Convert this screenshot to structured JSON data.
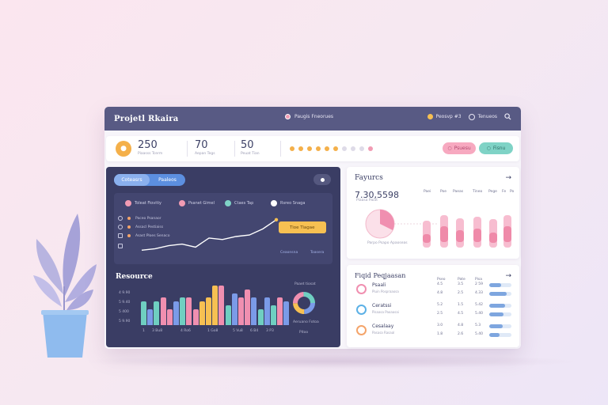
{
  "window": {
    "title": "Projetl Rkaira"
  },
  "titlebar": {
    "center_label": "Paugis Fneorues",
    "right_label": "Peosvp #3",
    "settings_label": "Tenueos"
  },
  "stats": [
    {
      "value": "250",
      "label": "Piaasss Tcerm"
    },
    {
      "value": "70",
      "label": "Aepan Tegs"
    },
    {
      "value": "50",
      "label": "Peuat Tian"
    }
  ],
  "progress_dots": {
    "filled": 6,
    "total": 10,
    "colors": {
      "filled": "#f4b04a",
      "empty": "#dedbe8",
      "active": "#f19bb3"
    }
  },
  "actions": {
    "pink_label": "Psuesu",
    "teal_label": "Fisnu"
  },
  "dark_panel": {
    "toggle": [
      "Coteasrs",
      "Paaleos"
    ],
    "legend": [
      {
        "label": "Toleat Fiovitiy",
        "color": "#f19bb3"
      },
      {
        "label": "Psanet Gimel",
        "color": "#f19bb3"
      },
      {
        "label": "Ctaes Tap",
        "color": "#7fd3c6"
      },
      {
        "label": "Rsreo Snaga",
        "color": "#ffffff"
      }
    ],
    "side_list": [
      "Paceo Psanaor",
      "Assacl Pestiaiss",
      "Asast Ploes Senaco",
      ""
    ],
    "callout_label": "Tioe Tiagae",
    "footer": [
      "Ceaonsna",
      "Toasera"
    ],
    "line_series": {
      "name": "",
      "x": [
        0,
        1,
        2,
        3,
        4,
        5,
        6,
        7,
        8,
        9,
        10
      ],
      "y": [
        2,
        2.5,
        3.5,
        4,
        3,
        6,
        5.5,
        6.5,
        7,
        9,
        12
      ]
    },
    "resource": {
      "title": "Resource",
      "y_ticks": [
        "4 9.90",
        "5 9.40",
        "5 400",
        "5 9.90"
      ],
      "x_ticks": [
        "1",
        "3 Bu8",
        "4 Ro6",
        "1 Go8",
        "5 Vu8",
        "6 B4",
        "3 P3"
      ],
      "donut_title": "Paaet tiosat",
      "donut_caption": "Aeruano Fotoa",
      "donut_value": "Pitoo"
    }
  },
  "chart_data": [
    {
      "type": "bar",
      "title": "Resource",
      "categories": [
        "1",
        "2",
        "3",
        "4",
        "5",
        "6",
        "7",
        "8",
        "9",
        "10",
        "11",
        "12",
        "13",
        "14",
        "15",
        "16",
        "17",
        "18",
        "19",
        "20",
        "21",
        "22",
        "23"
      ],
      "values": [
        6,
        4,
        6,
        7,
        4,
        6,
        7,
        7,
        4,
        6,
        7,
        10,
        10,
        5,
        8,
        7,
        9,
        7,
        4,
        7,
        5,
        7,
        6
      ],
      "colors": [
        "#6fcfc1",
        "#7b9be8",
        "#6fcfc1",
        "#f08fb0",
        "#f08fb0",
        "#7b9be8",
        "#6fcfc1",
        "#f08fb0",
        "#f08fb0",
        "#f7c052",
        "#f7c052",
        "#f7c052",
        "#f08fb0",
        "#6fcfc1",
        "#7b9be8",
        "#f08fb0",
        "#f08fb0",
        "#7b9be8",
        "#6fcfc1",
        "#7b9be8",
        "#6fcfc1",
        "#f08fb0",
        "#7b9be8"
      ],
      "ylim": [
        0,
        12
      ]
    },
    {
      "type": "bar",
      "title": "Fayurcs",
      "categories": [
        "Paei",
        "Poe",
        "Paeas",
        "Tineo",
        "Pege",
        "Fe",
        "Po"
      ],
      "values": [
        0.3,
        0.5,
        0.4,
        0.45,
        0.35,
        0.5,
        0.65
      ],
      "ylim": [
        0,
        1
      ]
    }
  ],
  "figures": {
    "title": "Fayurcs",
    "value": "7.30,5598",
    "sub": "Piaasa Paiat",
    "pie_label": "Parpo Psapo Apaoseas",
    "columns": [
      "Paei",
      "Poe",
      "Paeas",
      "Tineo",
      "Pege",
      "Fe",
      "Po"
    ]
  },
  "projects": {
    "title": "Fiqid Peqjaasan",
    "columns": [
      "Pseo",
      "Pate",
      "Pisa"
    ],
    "rows": [
      {
        "name": "Psaali",
        "sub": "Pluin Pospraaosa",
        "icon": "chart-icon",
        "color": "#f08fb0",
        "cells": [
          [
            "4.5",
            "3.5",
            "2 59"
          ],
          [
            "4.8",
            "2.5",
            "4.33"
          ]
        ],
        "progress": [
          0.55,
          0.8
        ]
      },
      {
        "name": "Ceratssi",
        "sub": "Pisaasa Paoaasai",
        "icon": "chart-icon",
        "color": "#5cb1e6",
        "cells": [
          [
            "5.2",
            "1.5",
            "5.42"
          ],
          [
            "2.5",
            "4.5",
            "5.40"
          ]
        ],
        "progress": [
          0.7,
          0.65
        ]
      },
      {
        "name": "Cesalaay",
        "sub": "Pasasa Rasaal",
        "icon": "chart-icon",
        "color": "#f4a46a",
        "cells": [
          [
            "3.0",
            "4.8",
            "5.3"
          ],
          [
            "1.8",
            "2.6",
            "5.40"
          ]
        ],
        "progress": [
          0.6,
          0.45
        ]
      }
    ]
  }
}
